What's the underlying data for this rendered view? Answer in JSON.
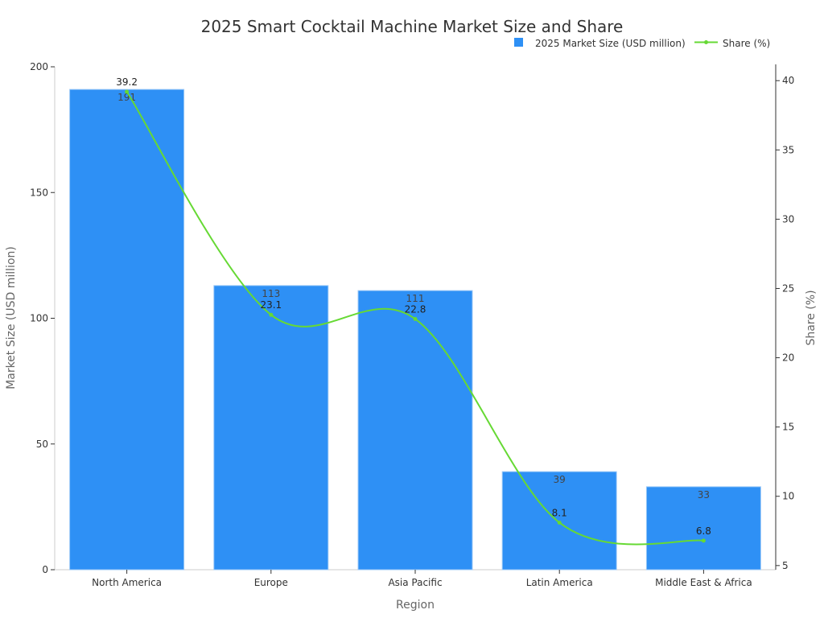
{
  "chart_data": {
    "type": "bar",
    "title": "2025 Smart Cocktail Machine Market Size and Share",
    "xlabel": "Region",
    "ylabel": "Market Size (USD million)",
    "y2label": "Share (%)",
    "categories": [
      "North America",
      "Europe",
      "Asia Pacific",
      "Latin America",
      "Middle East & Africa"
    ],
    "series": [
      {
        "name": "2025 Market Size (USD million)",
        "type": "bar",
        "axis": "left",
        "color": "#2e90f5",
        "values": [
          191,
          113,
          111,
          39,
          33
        ],
        "labels": [
          "191",
          "113",
          "111",
          "39",
          "33"
        ]
      },
      {
        "name": "Share (%)",
        "type": "line",
        "axis": "right",
        "color": "#66d934",
        "smooth": true,
        "values": [
          39.2,
          23.1,
          22.8,
          8.1,
          6.8
        ],
        "labels": [
          "39.2",
          "23.1",
          "22.8",
          "8.1",
          "6.8"
        ]
      }
    ],
    "ylim": [
      0,
      200
    ],
    "yticks": [
      "0",
      "50",
      "100",
      "150",
      "200"
    ],
    "y2lim": [
      4.7,
      41
    ],
    "y2ticks": [
      "5",
      "10",
      "15",
      "20",
      "25",
      "30",
      "35",
      "40"
    ],
    "legend_position": "top-right",
    "grid": false
  }
}
